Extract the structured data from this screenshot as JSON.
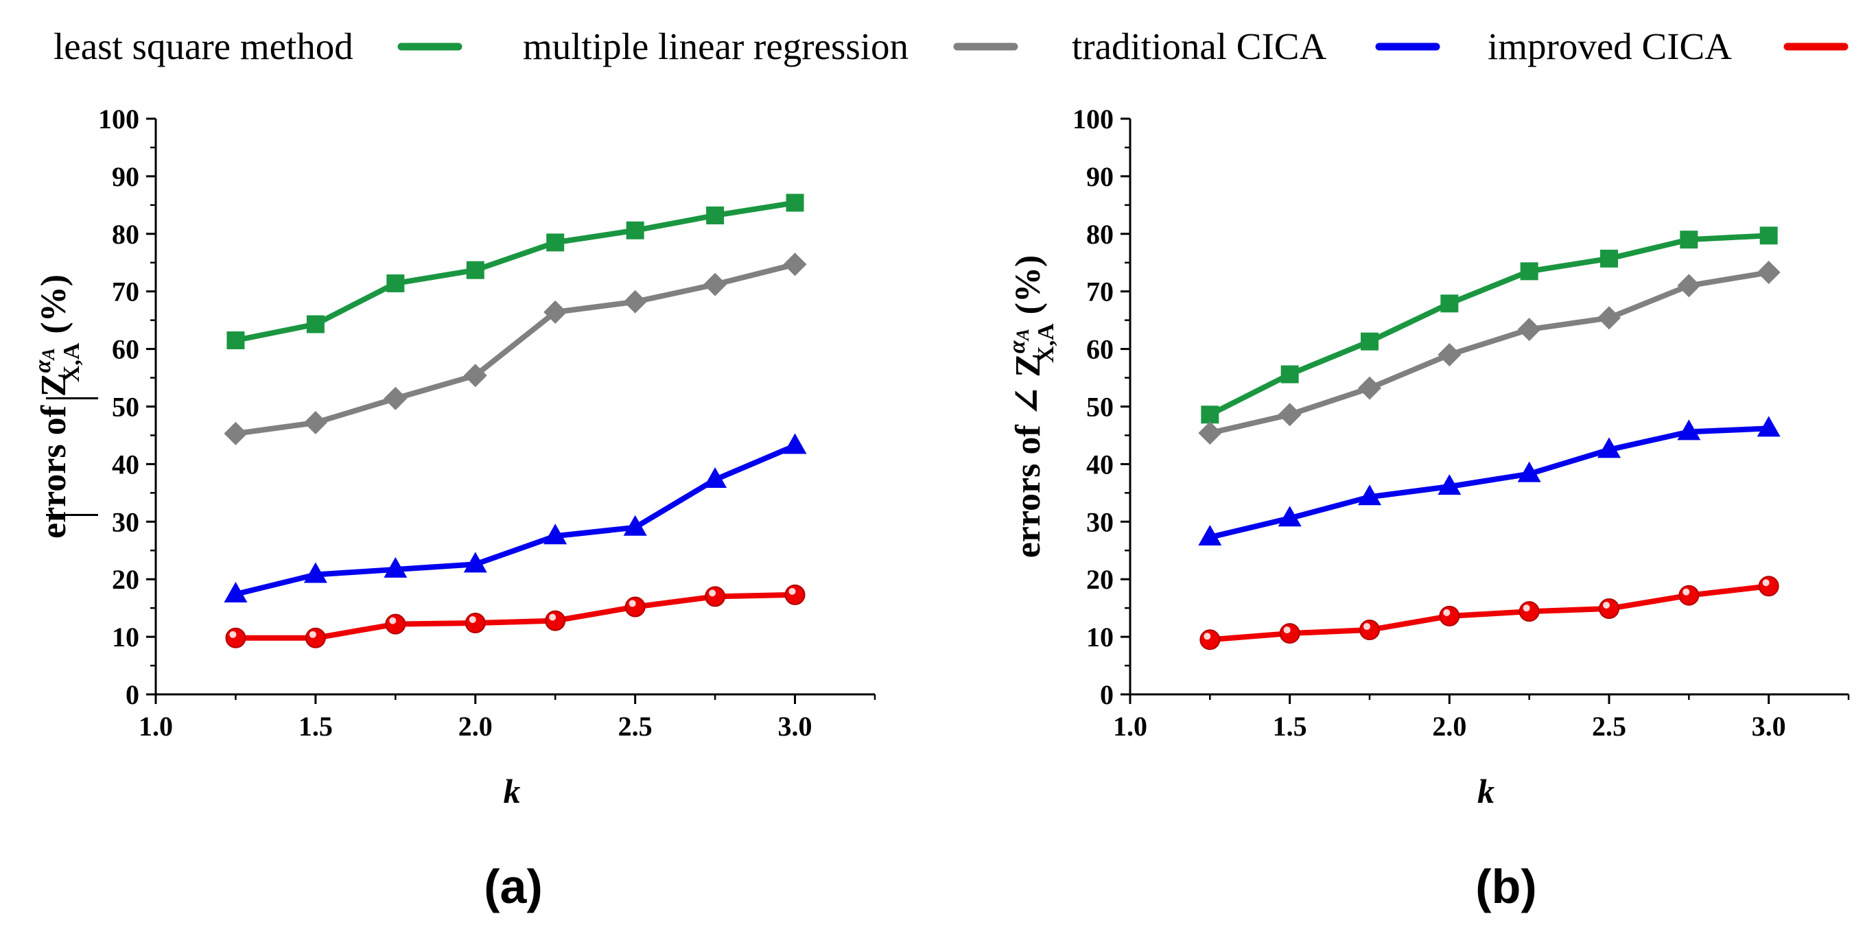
{
  "legend": [
    {
      "key": "lsm",
      "label": "least square method",
      "color": "#1a9641"
    },
    {
      "key": "mlr",
      "label": "multiple linear regression",
      "color": "#808080"
    },
    {
      "key": "tci",
      "label": "traditional CICA",
      "color": "#0000ee"
    },
    {
      "key": "ici",
      "label": "improved CICA",
      "color": "#ee0000"
    }
  ],
  "chart_data": [
    {
      "type": "line",
      "panel_label": "(a)",
      "ylabel_prefix": "errors of",
      "ylabel_symbol": "Z",
      "ylabel_sub": "X,A",
      "ylabel_sup_main": "α",
      "ylabel_sup_sub": "A",
      "ylabel_suffix": "(%)",
      "xlabel": "k",
      "xlim": [
        1.0,
        3.25
      ],
      "ylim": [
        0,
        100
      ],
      "xticks": [
        "1.0",
        "1.5",
        "2.0",
        "2.5",
        "3.0"
      ],
      "yticks": [
        "0",
        "10",
        "20",
        "30",
        "40",
        "50",
        "60",
        "70",
        "80",
        "90",
        "100"
      ],
      "x": [
        1.25,
        1.5,
        1.75,
        2.0,
        2.25,
        2.5,
        2.75,
        3.0
      ],
      "series": [
        {
          "name": "least square method",
          "color": "#1a9641",
          "marker": "square",
          "values": [
            61.5,
            64.3,
            71.4,
            73.7,
            78.5,
            80.6,
            83.2,
            85.4
          ]
        },
        {
          "name": "multiple linear regression",
          "color": "#808080",
          "marker": "diamond",
          "values": [
            45.3,
            47.2,
            51.4,
            55.4,
            66.4,
            68.2,
            71.2,
            74.7
          ]
        },
        {
          "name": "traditional CICA",
          "color": "#0000ee",
          "marker": "triangle",
          "values": [
            17.4,
            20.8,
            21.7,
            22.6,
            27.5,
            29.0,
            37.3,
            43.2
          ]
        },
        {
          "name": "improved CICA",
          "color": "#ee0000",
          "marker": "circle",
          "values": [
            9.8,
            9.8,
            12.2,
            12.4,
            12.8,
            15.2,
            17.0,
            17.3
          ]
        }
      ]
    },
    {
      "type": "line",
      "panel_label": "(b)",
      "ylabel_prefix": "errors of ∠",
      "ylabel_symbol": "Z",
      "ylabel_sub": "X,A",
      "ylabel_sup_main": "α",
      "ylabel_sup_sub": "A",
      "ylabel_suffix": "(%)",
      "xlabel": "k",
      "xlim": [
        1.0,
        3.25
      ],
      "ylim": [
        0,
        100
      ],
      "xticks": [
        "1.0",
        "1.5",
        "2.0",
        "2.5",
        "3.0"
      ],
      "yticks": [
        "0",
        "10",
        "20",
        "30",
        "40",
        "50",
        "60",
        "70",
        "80",
        "90",
        "100"
      ],
      "x": [
        1.25,
        1.5,
        1.75,
        2.0,
        2.25,
        2.5,
        2.75,
        3.0
      ],
      "series": [
        {
          "name": "least square method",
          "color": "#1a9641",
          "marker": "square",
          "values": [
            48.6,
            55.6,
            61.3,
            67.9,
            73.5,
            75.7,
            79.0,
            79.7
          ]
        },
        {
          "name": "multiple linear regression",
          "color": "#808080",
          "marker": "diamond",
          "values": [
            45.4,
            48.6,
            53.2,
            59.0,
            63.4,
            65.4,
            71.0,
            73.3
          ]
        },
        {
          "name": "traditional CICA",
          "color": "#0000ee",
          "marker": "triangle",
          "values": [
            27.3,
            30.6,
            34.3,
            36.1,
            38.3,
            42.5,
            45.6,
            46.2
          ]
        },
        {
          "name": "improved CICA",
          "color": "#ee0000",
          "marker": "circle",
          "values": [
            9.5,
            10.6,
            11.2,
            13.6,
            14.4,
            14.9,
            17.2,
            18.8
          ]
        }
      ]
    }
  ]
}
